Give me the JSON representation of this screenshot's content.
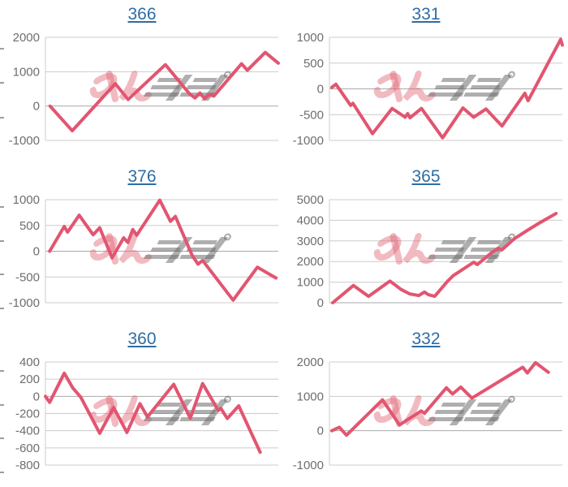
{
  "page": {
    "background": "#ffffff"
  },
  "colors": {
    "line": "#e25570",
    "title_link": "#2e6da4",
    "axis_label": "#6e6e6e",
    "gridline": "#cccccc",
    "baseline": "#a9a9a9",
    "axis_line": "#cccccc",
    "stub": "#9e9e9e",
    "watermark_pink": "#e06776",
    "watermark_gray": "#6e6e6e"
  },
  "watermark": {
    "text": "みんレポ",
    "name": "minrepo-logo"
  },
  "chart_data": [
    {
      "type": "line",
      "title": "366",
      "ylabel": "",
      "xlabel": "",
      "ylim": [
        -1000,
        2000
      ],
      "yticks": [
        2000,
        1000,
        0,
        -1000
      ],
      "x_axis": {
        "labels": "none",
        "range": [
          0,
          1
        ]
      },
      "grid": true,
      "legend": "none",
      "points": [
        [
          0.02,
          0
        ],
        [
          0.115,
          -720
        ],
        [
          0.3,
          650
        ],
        [
          0.355,
          190
        ],
        [
          0.515,
          1205
        ],
        [
          0.618,
          360
        ],
        [
          0.642,
          235
        ],
        [
          0.663,
          380
        ],
        [
          0.684,
          215
        ],
        [
          0.705,
          340
        ],
        [
          0.723,
          290
        ],
        [
          0.842,
          1230
        ],
        [
          0.867,
          1040
        ],
        [
          0.944,
          1560
        ],
        [
          1.0,
          1250
        ]
      ]
    },
    {
      "type": "line",
      "title": "331",
      "ylabel": "",
      "xlabel": "",
      "ylim": [
        -1000,
        1000
      ],
      "yticks": [
        1000,
        500,
        0,
        -500,
        -1000
      ],
      "x_axis": {
        "labels": "none",
        "range": [
          0,
          1
        ]
      },
      "grid": true,
      "legend": "none",
      "points": [
        [
          0.01,
          30
        ],
        [
          0.028,
          90
        ],
        [
          0.091,
          -320
        ],
        [
          0.101,
          -280
        ],
        [
          0.185,
          -870
        ],
        [
          0.269,
          -380
        ],
        [
          0.325,
          -550
        ],
        [
          0.336,
          -480
        ],
        [
          0.346,
          -560
        ],
        [
          0.395,
          -380
        ],
        [
          0.486,
          -950
        ],
        [
          0.573,
          -370
        ],
        [
          0.619,
          -550
        ],
        [
          0.672,
          -390
        ],
        [
          0.741,
          -720
        ],
        [
          0.839,
          -85
        ],
        [
          0.853,
          -230
        ],
        [
          0.993,
          960
        ],
        [
          1.0,
          850
        ]
      ]
    },
    {
      "type": "line",
      "title": "376",
      "ylabel": "",
      "xlabel": "",
      "ylim": [
        -1000,
        1000
      ],
      "yticks": [
        1000,
        500,
        0,
        -500,
        -1000
      ],
      "x_axis": {
        "labels": "none",
        "range": [
          0,
          1
        ]
      },
      "grid": true,
      "legend": "none",
      "points": [
        [
          0.018,
          0
        ],
        [
          0.081,
          480
        ],
        [
          0.095,
          370
        ],
        [
          0.145,
          700
        ],
        [
          0.187,
          430
        ],
        [
          0.205,
          320
        ],
        [
          0.233,
          455
        ],
        [
          0.286,
          -130
        ],
        [
          0.336,
          260
        ],
        [
          0.354,
          170
        ],
        [
          0.375,
          420
        ],
        [
          0.392,
          310
        ],
        [
          0.491,
          990
        ],
        [
          0.537,
          580
        ],
        [
          0.558,
          675
        ],
        [
          0.63,
          -80
        ],
        [
          0.655,
          -250
        ],
        [
          0.675,
          -180
        ],
        [
          0.806,
          -950
        ],
        [
          0.91,
          -310
        ],
        [
          0.99,
          -520
        ]
      ]
    },
    {
      "type": "line",
      "title": "365",
      "ylabel": "",
      "xlabel": "",
      "ylim": [
        0,
        5000
      ],
      "yticks": [
        5000,
        4000,
        3000,
        2000,
        1000,
        0
      ],
      "x_axis": {
        "labels": "none",
        "range": [
          0,
          1
        ]
      },
      "grid": true,
      "legend": "none",
      "points": [
        [
          0.014,
          0
        ],
        [
          0.103,
          840
        ],
        [
          0.168,
          310
        ],
        [
          0.26,
          1050
        ],
        [
          0.308,
          640
        ],
        [
          0.345,
          430
        ],
        [
          0.384,
          350
        ],
        [
          0.408,
          520
        ],
        [
          0.425,
          390
        ],
        [
          0.452,
          310
        ],
        [
          0.507,
          1040
        ],
        [
          0.531,
          1310
        ],
        [
          0.62,
          1970
        ],
        [
          0.635,
          1850
        ],
        [
          0.69,
          2370
        ],
        [
          0.724,
          2650
        ],
        [
          0.74,
          2560
        ],
        [
          0.793,
          3100
        ],
        [
          0.85,
          3510
        ],
        [
          0.897,
          3840
        ],
        [
          0.973,
          4330
        ]
      ]
    },
    {
      "type": "line",
      "title": "360",
      "ylabel": "",
      "xlabel": "",
      "ylim": [
        -800,
        400
      ],
      "yticks": [
        400,
        200,
        0,
        -200,
        -400,
        -600,
        -800
      ],
      "x_axis": {
        "labels": "none",
        "range": [
          0,
          1
        ]
      },
      "grid": true,
      "legend": "none",
      "points": [
        [
          0.0,
          0
        ],
        [
          0.018,
          -70
        ],
        [
          0.081,
          270
        ],
        [
          0.117,
          100
        ],
        [
          0.152,
          -10
        ],
        [
          0.233,
          -430
        ],
        [
          0.293,
          -130
        ],
        [
          0.35,
          -420
        ],
        [
          0.406,
          -85
        ],
        [
          0.438,
          -240
        ],
        [
          0.551,
          140
        ],
        [
          0.622,
          -255
        ],
        [
          0.675,
          150
        ],
        [
          0.742,
          -165
        ],
        [
          0.753,
          -140
        ],
        [
          0.781,
          -258
        ],
        [
          0.83,
          -110
        ],
        [
          0.922,
          -650
        ]
      ]
    },
    {
      "type": "line",
      "title": "332",
      "ylabel": "",
      "xlabel": "",
      "ylim": [
        -1000,
        2000
      ],
      "yticks": [
        2000,
        1000,
        0,
        -1000
      ],
      "x_axis": {
        "labels": "none",
        "range": [
          0,
          1
        ]
      },
      "grid": true,
      "legend": "none",
      "points": [
        [
          0.01,
          0
        ],
        [
          0.042,
          100
        ],
        [
          0.073,
          -130
        ],
        [
          0.228,
          900
        ],
        [
          0.301,
          170
        ],
        [
          0.394,
          575
        ],
        [
          0.408,
          505
        ],
        [
          0.502,
          1250
        ],
        [
          0.529,
          1070
        ],
        [
          0.564,
          1270
        ],
        [
          0.612,
          950
        ],
        [
          0.83,
          1850
        ],
        [
          0.85,
          1680
        ],
        [
          0.885,
          1980
        ],
        [
          0.94,
          1700
        ]
      ]
    }
  ]
}
